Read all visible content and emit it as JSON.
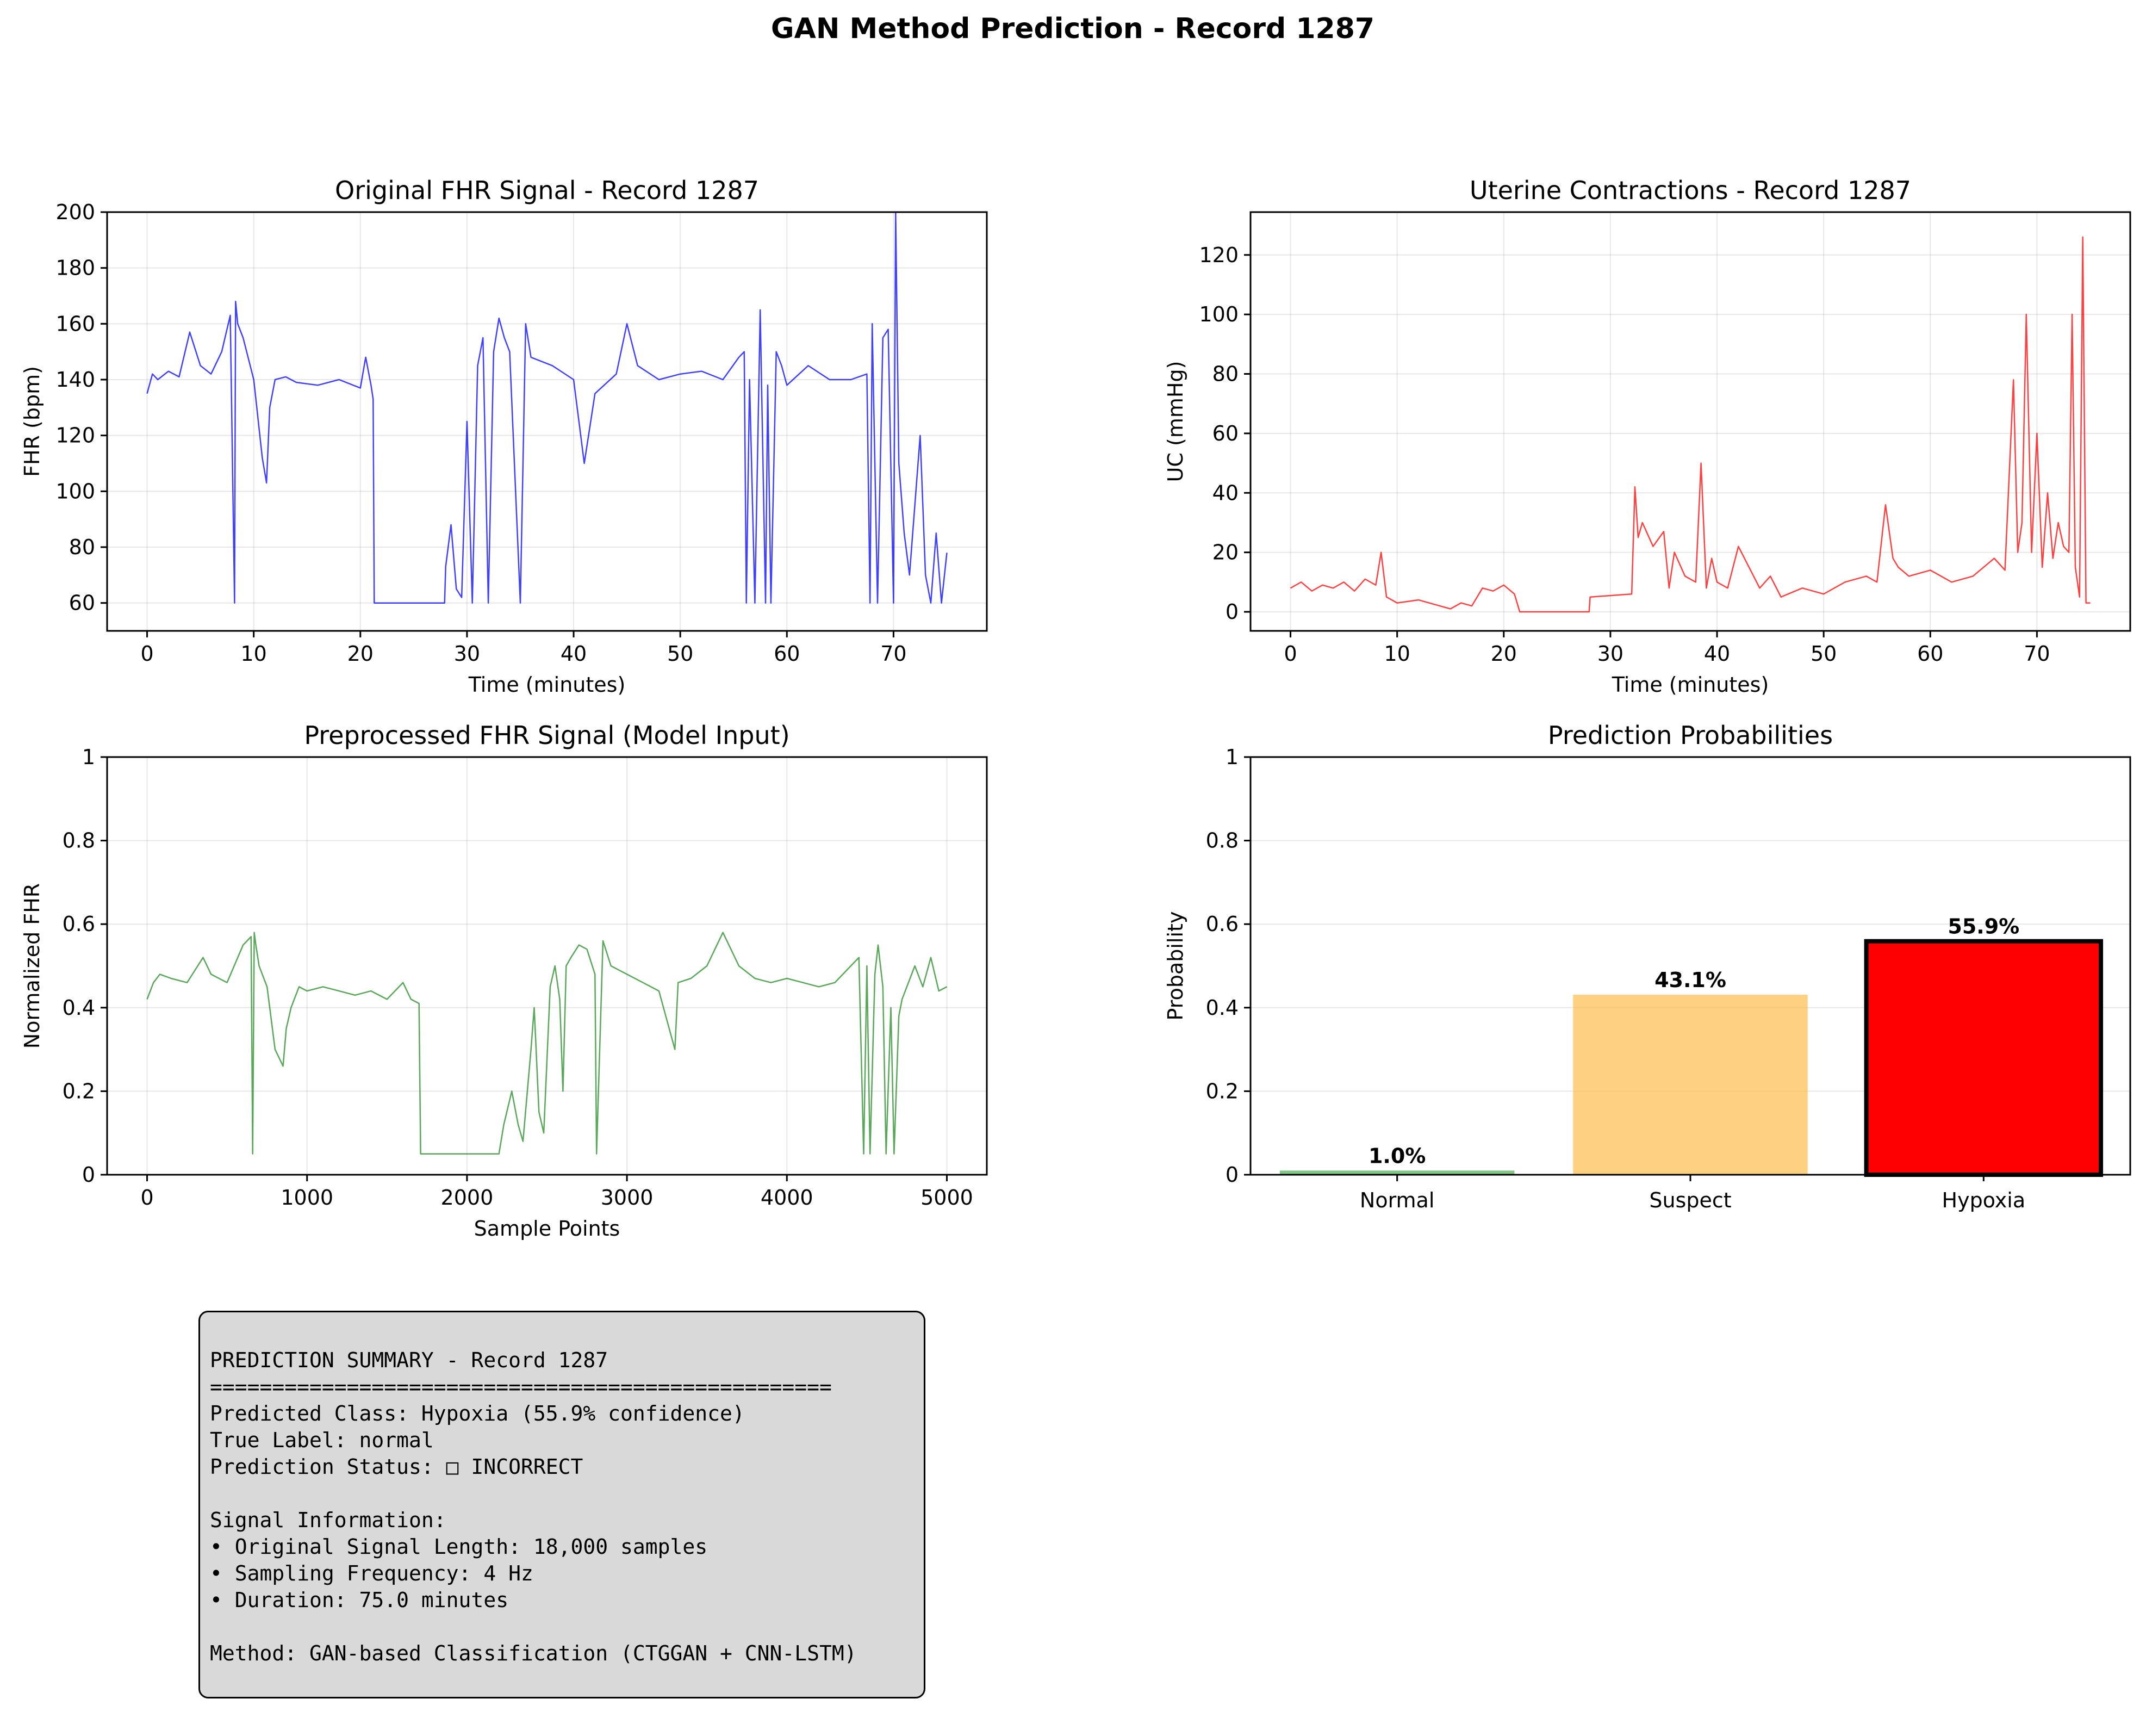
{
  "figure": {
    "title": "GAN Method Prediction - Record 1287"
  },
  "summary": {
    "lines": [
      "PREDICTION SUMMARY - Record 1287",
      "==================================================",
      "Predicted Class: Hypoxia (55.9% confidence)",
      "True Label: normal",
      "Prediction Status: □ INCORRECT",
      "",
      "Signal Information:",
      "• Original Signal Length: 18,000 samples",
      "• Sampling Frequency: 4 Hz",
      "• Duration: 75.0 minutes",
      "",
      "Method: GAN-based Classification (CTGGAN + CNN-LSTM)"
    ]
  },
  "chart_data": [
    {
      "type": "line",
      "title": "Original FHR Signal - Record 1287",
      "xlabel": "Time (minutes)",
      "ylabel": "FHR (bpm)",
      "xlim": [
        -3.75,
        78.75
      ],
      "ylim": [
        50,
        200
      ],
      "xticks": [
        0,
        10,
        20,
        30,
        40,
        50,
        60,
        70
      ],
      "yticks": [
        60,
        80,
        100,
        120,
        140,
        160,
        180,
        200
      ],
      "grid": true,
      "color": "#0000ff",
      "x": [
        0,
        0.5,
        1,
        2,
        3,
        4,
        5,
        6,
        7,
        7.8,
        8.2,
        8.3,
        8.5,
        9,
        10,
        10.8,
        11.2,
        11.5,
        12,
        13,
        14,
        16,
        18,
        20,
        20.5,
        21,
        21.2,
        21.3,
        22,
        25,
        27.9,
        28,
        28.5,
        29,
        29.5,
        30,
        30.5,
        31,
        31.5,
        32,
        32.5,
        33,
        33.5,
        34,
        35,
        35.5,
        36,
        38,
        40,
        41,
        42,
        44,
        45,
        46,
        48,
        50,
        52,
        54,
        55.5,
        56,
        56.2,
        56.5,
        57,
        57.5,
        58,
        58.2,
        58.5,
        59,
        59.5,
        60,
        62,
        64,
        66,
        67.5,
        67.8,
        68,
        68.5,
        69,
        69.5,
        70,
        70.2,
        70.5,
        71,
        71.5,
        72,
        72.5,
        73,
        73.5,
        74,
        74.5,
        75
      ],
      "y": [
        135,
        142,
        140,
        143,
        141,
        157,
        145,
        142,
        150,
        163,
        60,
        168,
        160,
        155,
        140,
        112,
        103,
        130,
        140,
        141,
        139,
        138,
        140,
        137,
        148,
        138,
        133,
        60,
        60,
        60,
        60,
        73,
        88,
        65,
        62,
        125,
        60,
        145,
        155,
        60,
        150,
        162,
        155,
        150,
        60,
        160,
        148,
        145,
        140,
        110,
        135,
        142,
        160,
        145,
        140,
        142,
        143,
        140,
        148,
        150,
        60,
        140,
        60,
        165,
        60,
        138,
        60,
        150,
        145,
        138,
        145,
        140,
        140,
        142,
        60,
        160,
        60,
        155,
        158,
        60,
        200,
        110,
        85,
        70,
        95,
        120,
        70,
        60,
        85,
        60,
        78
      ]
    },
    {
      "type": "line",
      "title": "Uterine Contractions - Record 1287",
      "xlabel": "Time (minutes)",
      "ylabel": "UC (mmHg)",
      "xlim": [
        -3.75,
        78.75
      ],
      "ylim": [
        -6.4,
        134.4
      ],
      "xticks": [
        0,
        10,
        20,
        30,
        40,
        50,
        60,
        70
      ],
      "yticks": [
        0,
        20,
        40,
        60,
        80,
        100,
        120
      ],
      "grid": true,
      "color": "#ff0000",
      "x": [
        0,
        1,
        2,
        3,
        4,
        5,
        6,
        7,
        8,
        8.5,
        9,
        10,
        12,
        14,
        15,
        16,
        17,
        18,
        19,
        20,
        21,
        21.5,
        22,
        25,
        28,
        28.1,
        32,
        32.3,
        32.6,
        33,
        34,
        35,
        35.5,
        36,
        37,
        38,
        38.5,
        39,
        39.5,
        40,
        41,
        42,
        44,
        45,
        46,
        48,
        50,
        52,
        54,
        55,
        55.8,
        56.5,
        57,
        58,
        60,
        62,
        64,
        66,
        67,
        67.8,
        68.2,
        68.6,
        69,
        69.5,
        70,
        70.5,
        71,
        71.5,
        72,
        72.5,
        73,
        73.3,
        73.6,
        74,
        74.3,
        74.6,
        75
      ],
      "y": [
        8,
        10,
        7,
        9,
        8,
        10,
        7,
        11,
        9,
        20,
        5,
        3,
        4,
        2,
        1,
        3,
        2,
        8,
        7,
        9,
        6,
        0,
        0,
        0,
        0,
        5,
        6,
        42,
        25,
        30,
        22,
        27,
        8,
        20,
        12,
        10,
        50,
        8,
        18,
        10,
        8,
        22,
        8,
        12,
        5,
        8,
        6,
        10,
        12,
        10,
        36,
        18,
        15,
        12,
        14,
        10,
        12,
        18,
        14,
        78,
        20,
        30,
        100,
        20,
        60,
        15,
        40,
        18,
        30,
        22,
        20,
        100,
        15,
        5,
        126,
        3,
        3
      ]
    },
    {
      "type": "line",
      "title": "Preprocessed FHR Signal (Model Input)",
      "xlabel": "Sample Points",
      "ylabel": "Normalized FHR",
      "xlim": [
        -250,
        5250
      ],
      "ylim": [
        0,
        1
      ],
      "xticks": [
        0,
        1000,
        2000,
        3000,
        4000,
        5000
      ],
      "yticks": [
        0.0,
        0.2,
        0.4,
        0.6,
        0.8,
        1.0
      ],
      "grid": true,
      "color": "#228b22",
      "x": [
        0,
        40,
        80,
        150,
        250,
        350,
        400,
        500,
        600,
        650,
        660,
        670,
        680,
        700,
        750,
        800,
        850,
        870,
        900,
        950,
        1000,
        1100,
        1200,
        1300,
        1400,
        1500,
        1600,
        1650,
        1700,
        1710,
        1800,
        2000,
        2200,
        2230,
        2280,
        2320,
        2350,
        2400,
        2420,
        2450,
        2480,
        2520,
        2550,
        2580,
        2600,
        2620,
        2650,
        2700,
        2750,
        2800,
        2810,
        2850,
        2900,
        3000,
        3100,
        3200,
        3300,
        3320,
        3400,
        3500,
        3600,
        3700,
        3800,
        3900,
        4000,
        4100,
        4200,
        4300,
        4400,
        4450,
        4480,
        4500,
        4520,
        4550,
        4570,
        4600,
        4620,
        4650,
        4670,
        4700,
        4720,
        4800,
        4850,
        4900,
        4950,
        5000
      ],
      "y": [
        0.42,
        0.46,
        0.48,
        0.47,
        0.46,
        0.52,
        0.48,
        0.46,
        0.55,
        0.57,
        0.05,
        0.58,
        0.55,
        0.5,
        0.45,
        0.3,
        0.26,
        0.35,
        0.4,
        0.45,
        0.44,
        0.45,
        0.44,
        0.43,
        0.44,
        0.42,
        0.46,
        0.42,
        0.41,
        0.05,
        0.05,
        0.05,
        0.05,
        0.12,
        0.2,
        0.12,
        0.08,
        0.3,
        0.4,
        0.15,
        0.1,
        0.45,
        0.5,
        0.42,
        0.2,
        0.5,
        0.52,
        0.55,
        0.54,
        0.48,
        0.05,
        0.56,
        0.5,
        0.48,
        0.46,
        0.44,
        0.3,
        0.46,
        0.47,
        0.5,
        0.58,
        0.5,
        0.47,
        0.46,
        0.47,
        0.46,
        0.45,
        0.46,
        0.5,
        0.52,
        0.05,
        0.5,
        0.05,
        0.48,
        0.55,
        0.45,
        0.05,
        0.4,
        0.05,
        0.38,
        0.42,
        0.5,
        0.45,
        0.52,
        0.44,
        0.45
      ]
    },
    {
      "type": "bar",
      "title": "Prediction Probabilities",
      "xlabel": "",
      "ylabel": "Probability",
      "ylim": [
        0,
        1
      ],
      "yticks": [
        0.0,
        0.2,
        0.4,
        0.6,
        0.8,
        1.0
      ],
      "grid": true,
      "categories": [
        "Normal",
        "Suspect",
        "Hypoxia"
      ],
      "values": [
        0.01,
        0.431,
        0.559
      ],
      "labels": [
        "1.0%",
        "43.1%",
        "55.9%"
      ],
      "colors": [
        "#4caf50",
        "#fdbd4c",
        "#ff0000"
      ],
      "highlighted": "Hypoxia"
    }
  ]
}
